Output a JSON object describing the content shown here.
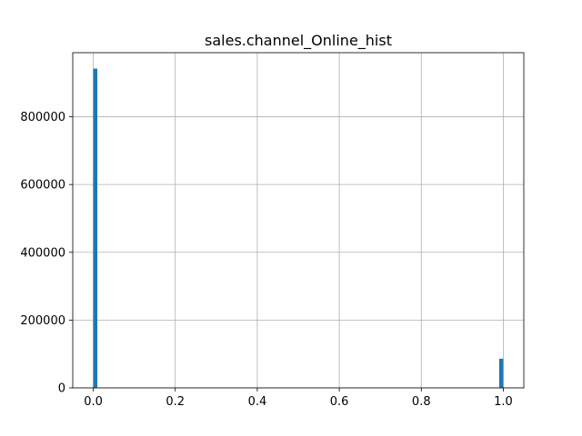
{
  "chart_data": {
    "type": "bar",
    "title": "sales.channel_Online_hist",
    "xlabel": "",
    "ylabel": "",
    "bin_count": 100,
    "bars": [
      {
        "x_start": 0.0,
        "x_end": 0.01,
        "value": 942000
      },
      {
        "x_start": 0.99,
        "x_end": 1.0,
        "value": 86000
      }
    ],
    "xlim": [
      -0.05,
      1.05
    ],
    "ylim": [
      0,
      989100
    ],
    "x_ticks": [
      {
        "value": 0.0,
        "label": "0.0"
      },
      {
        "value": 0.2,
        "label": "0.2"
      },
      {
        "value": 0.4,
        "label": "0.4"
      },
      {
        "value": 0.6,
        "label": "0.6"
      },
      {
        "value": 0.8,
        "label": "0.8"
      },
      {
        "value": 1.0,
        "label": "1.0"
      }
    ],
    "y_ticks": [
      {
        "value": 0,
        "label": "0"
      },
      {
        "value": 200000,
        "label": "200000"
      },
      {
        "value": 400000,
        "label": "400000"
      },
      {
        "value": 600000,
        "label": "600000"
      },
      {
        "value": 800000,
        "label": "800000"
      }
    ],
    "grid": true,
    "bar_color": "#1f77b4"
  }
}
